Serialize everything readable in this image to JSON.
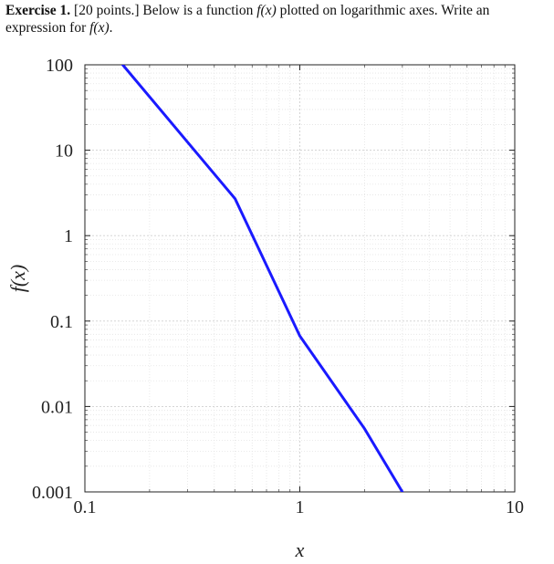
{
  "problem": {
    "exercise_label": "Exercise 1.",
    "points": "[20 points.]",
    "text_a": "Below is a function",
    "fx": "f(x)",
    "text_b": "plotted on logarithmic axes. Write an expression for",
    "fx2": "f(x)",
    "end": "."
  },
  "chart_data": {
    "type": "line",
    "xscale": "log",
    "yscale": "log",
    "xlim": [
      0.1,
      10
    ],
    "ylim": [
      0.001,
      100
    ],
    "xticks": [
      0.1,
      1,
      10
    ],
    "xtick_labels": [
      "0.1",
      "1",
      "10"
    ],
    "yticks": [
      0.001,
      0.01,
      0.1,
      1,
      10,
      100
    ],
    "ytick_labels": [
      "0.001",
      "0.01",
      "0.1",
      "1",
      "10",
      "100"
    ],
    "xlabel": "x",
    "ylabel": "f(x)",
    "grid": true,
    "series": [
      {
        "color": "#1a1aff",
        "x": [
          0.15,
          0.3,
          0.5,
          1,
          2,
          3
        ],
        "y": [
          100,
          12.5,
          2.7,
          0.067,
          0.0055,
          0.001
        ]
      }
    ]
  }
}
